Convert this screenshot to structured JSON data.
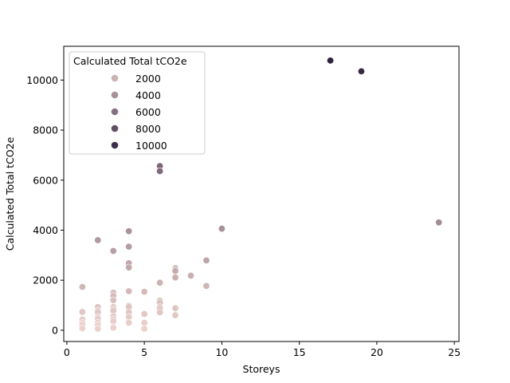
{
  "chart_data": {
    "type": "scatter",
    "title": "",
    "xlabel": "Storeys",
    "ylabel": "Calculated Total tCO2e",
    "xlim": [
      -0.2,
      25.3
    ],
    "ylim": [
      -450,
      11350
    ],
    "xticks": [
      0,
      5,
      10,
      15,
      20,
      25
    ],
    "yticks": [
      0,
      2000,
      4000,
      6000,
      8000,
      10000
    ],
    "grid": false,
    "legend": {
      "title": "Calculated Total tCO2e",
      "placement": "top-left",
      "entries": [
        {
          "label": "2000",
          "value": 2000
        },
        {
          "label": "4000",
          "value": 4000
        },
        {
          "label": "6000",
          "value": 6000
        },
        {
          "label": "8000",
          "value": 8000
        },
        {
          "label": "10000",
          "value": 10000
        }
      ]
    },
    "hue_scale": {
      "min": 0,
      "max": 11000,
      "low_color": "#eed3cd",
      "high_color": "#2d1e3e"
    },
    "points": [
      {
        "x": 1,
        "y": 1730
      },
      {
        "x": 1,
        "y": 730
      },
      {
        "x": 1,
        "y": 430
      },
      {
        "x": 1,
        "y": 300
      },
      {
        "x": 1,
        "y": 220
      },
      {
        "x": 1,
        "y": 80
      },
      {
        "x": 2,
        "y": 3600
      },
      {
        "x": 2,
        "y": 930
      },
      {
        "x": 2,
        "y": 780
      },
      {
        "x": 2,
        "y": 720
      },
      {
        "x": 2,
        "y": 530
      },
      {
        "x": 2,
        "y": 460
      },
      {
        "x": 2,
        "y": 300
      },
      {
        "x": 2,
        "y": 200
      },
      {
        "x": 2,
        "y": 60
      },
      {
        "x": 3,
        "y": 3170
      },
      {
        "x": 3,
        "y": 1500
      },
      {
        "x": 3,
        "y": 1380
      },
      {
        "x": 3,
        "y": 1200
      },
      {
        "x": 3,
        "y": 930
      },
      {
        "x": 3,
        "y": 850
      },
      {
        "x": 3,
        "y": 780
      },
      {
        "x": 3,
        "y": 560
      },
      {
        "x": 3,
        "y": 440
      },
      {
        "x": 3,
        "y": 350
      },
      {
        "x": 3,
        "y": 130
      },
      {
        "x": 3,
        "y": 100
      },
      {
        "x": 4,
        "y": 3960
      },
      {
        "x": 4,
        "y": 3340
      },
      {
        "x": 4,
        "y": 2680
      },
      {
        "x": 4,
        "y": 2510
      },
      {
        "x": 4,
        "y": 1560
      },
      {
        "x": 4,
        "y": 980
      },
      {
        "x": 4,
        "y": 930
      },
      {
        "x": 4,
        "y": 720
      },
      {
        "x": 4,
        "y": 530
      },
      {
        "x": 4,
        "y": 300
      },
      {
        "x": 5,
        "y": 1540
      },
      {
        "x": 5,
        "y": 650
      },
      {
        "x": 5,
        "y": 300
      },
      {
        "x": 5,
        "y": 60
      },
      {
        "x": 6,
        "y": 6560
      },
      {
        "x": 6,
        "y": 6360
      },
      {
        "x": 6,
        "y": 1900
      },
      {
        "x": 6,
        "y": 1180
      },
      {
        "x": 6,
        "y": 1100
      },
      {
        "x": 6,
        "y": 930
      },
      {
        "x": 6,
        "y": 860
      },
      {
        "x": 6,
        "y": 720
      },
      {
        "x": 7,
        "y": 2480
      },
      {
        "x": 7,
        "y": 2420
      },
      {
        "x": 7,
        "y": 2370
      },
      {
        "x": 7,
        "y": 2110
      },
      {
        "x": 7,
        "y": 880
      },
      {
        "x": 7,
        "y": 600
      },
      {
        "x": 8,
        "y": 2180
      },
      {
        "x": 9,
        "y": 2790
      },
      {
        "x": 9,
        "y": 1770
      },
      {
        "x": 10,
        "y": 4060
      },
      {
        "x": 17,
        "y": 10780
      },
      {
        "x": 19,
        "y": 10350
      },
      {
        "x": 24,
        "y": 4310
      }
    ]
  }
}
